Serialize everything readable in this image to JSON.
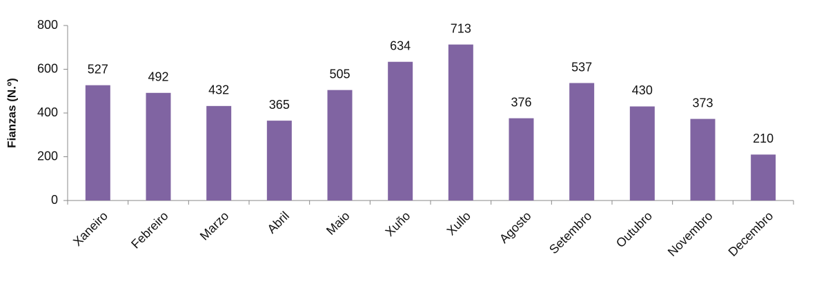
{
  "chart_data": {
    "type": "bar",
    "y_label": "Fianzas (N.º)",
    "categories": [
      "Xaneiro",
      "Febreiro",
      "Marzo",
      "Abril",
      "Maio",
      "Xuño",
      "Xullo",
      "Agosto",
      "Setembro",
      "Outubro",
      "Novembro",
      "Decembro"
    ],
    "values": [
      527,
      492,
      432,
      365,
      505,
      634,
      713,
      376,
      537,
      430,
      373,
      210
    ],
    "color": "#8064a2",
    "ylim": [
      0,
      800
    ],
    "yticks": [
      0,
      200,
      400,
      600,
      800
    ],
    "grid": false
  }
}
